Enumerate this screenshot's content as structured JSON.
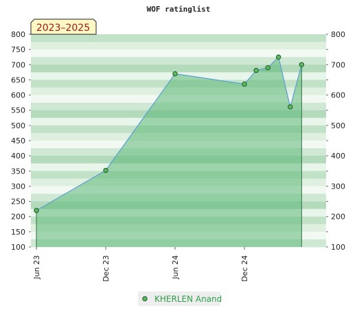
{
  "chart_data": {
    "type": "area",
    "title": "WOF ratinglist",
    "period_badge": "2023–2025",
    "xlabel": "",
    "ylabel": "",
    "ylim": [
      100,
      800
    ],
    "y_ticks": [
      100,
      150,
      200,
      250,
      300,
      350,
      400,
      450,
      500,
      550,
      600,
      650,
      700,
      750,
      800
    ],
    "right_y_ticks": [
      100,
      200,
      300,
      400,
      500,
      600,
      700,
      800
    ],
    "x_range": [
      "2023-06-01",
      "2025-07-01"
    ],
    "x_ticks": [
      {
        "date": "2023-06-01",
        "label": "Jun 23"
      },
      {
        "date": "2023-12-01",
        "label": "Dec 23"
      },
      {
        "date": "2024-06-01",
        "label": "Jun 24"
      },
      {
        "date": "2024-12-01",
        "label": "Dec 24"
      }
    ],
    "grid": true,
    "legend_position": "bottom-center",
    "series": [
      {
        "name": "KHERLEN Anand",
        "color": "#5a9fd4",
        "fill_color": "#5fb878",
        "marker_color": "#5cb85c",
        "points": [
          {
            "x": "2023-06-01",
            "y": 220
          },
          {
            "x": "2023-12-01",
            "y": 352
          },
          {
            "x": "2024-06-01",
            "y": 670
          },
          {
            "x": "2024-12-01",
            "y": 636
          },
          {
            "x": "2025-01-01",
            "y": 681
          },
          {
            "x": "2025-02-01",
            "y": 690
          },
          {
            "x": "2025-03-01",
            "y": 725
          },
          {
            "x": "2025-04-01",
            "y": 561
          },
          {
            "x": "2025-05-01",
            "y": 700
          }
        ]
      }
    ]
  }
}
